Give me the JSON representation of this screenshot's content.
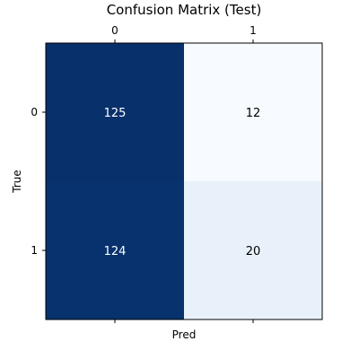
{
  "chart_data": {
    "type": "heatmap",
    "title": "Confusion Matrix (Test)",
    "xlabel": "Pred",
    "ylabel": "True",
    "x_tick_labels": [
      "0",
      "1"
    ],
    "y_tick_labels": [
      "0",
      "1"
    ],
    "x_ticks_position": "top-and-bottom",
    "colormap": "Blues",
    "values": [
      [
        125,
        12
      ],
      [
        124,
        20
      ]
    ],
    "grid": false,
    "legend": "none"
  },
  "colors": {
    "cell_0_0": "#08306b",
    "cell_0_1": "#f7fbff",
    "cell_1_0": "#08326e",
    "cell_1_1": "#e8f1fa",
    "text_on_dark": "#ffffff",
    "text_on_light": "#000000"
  }
}
